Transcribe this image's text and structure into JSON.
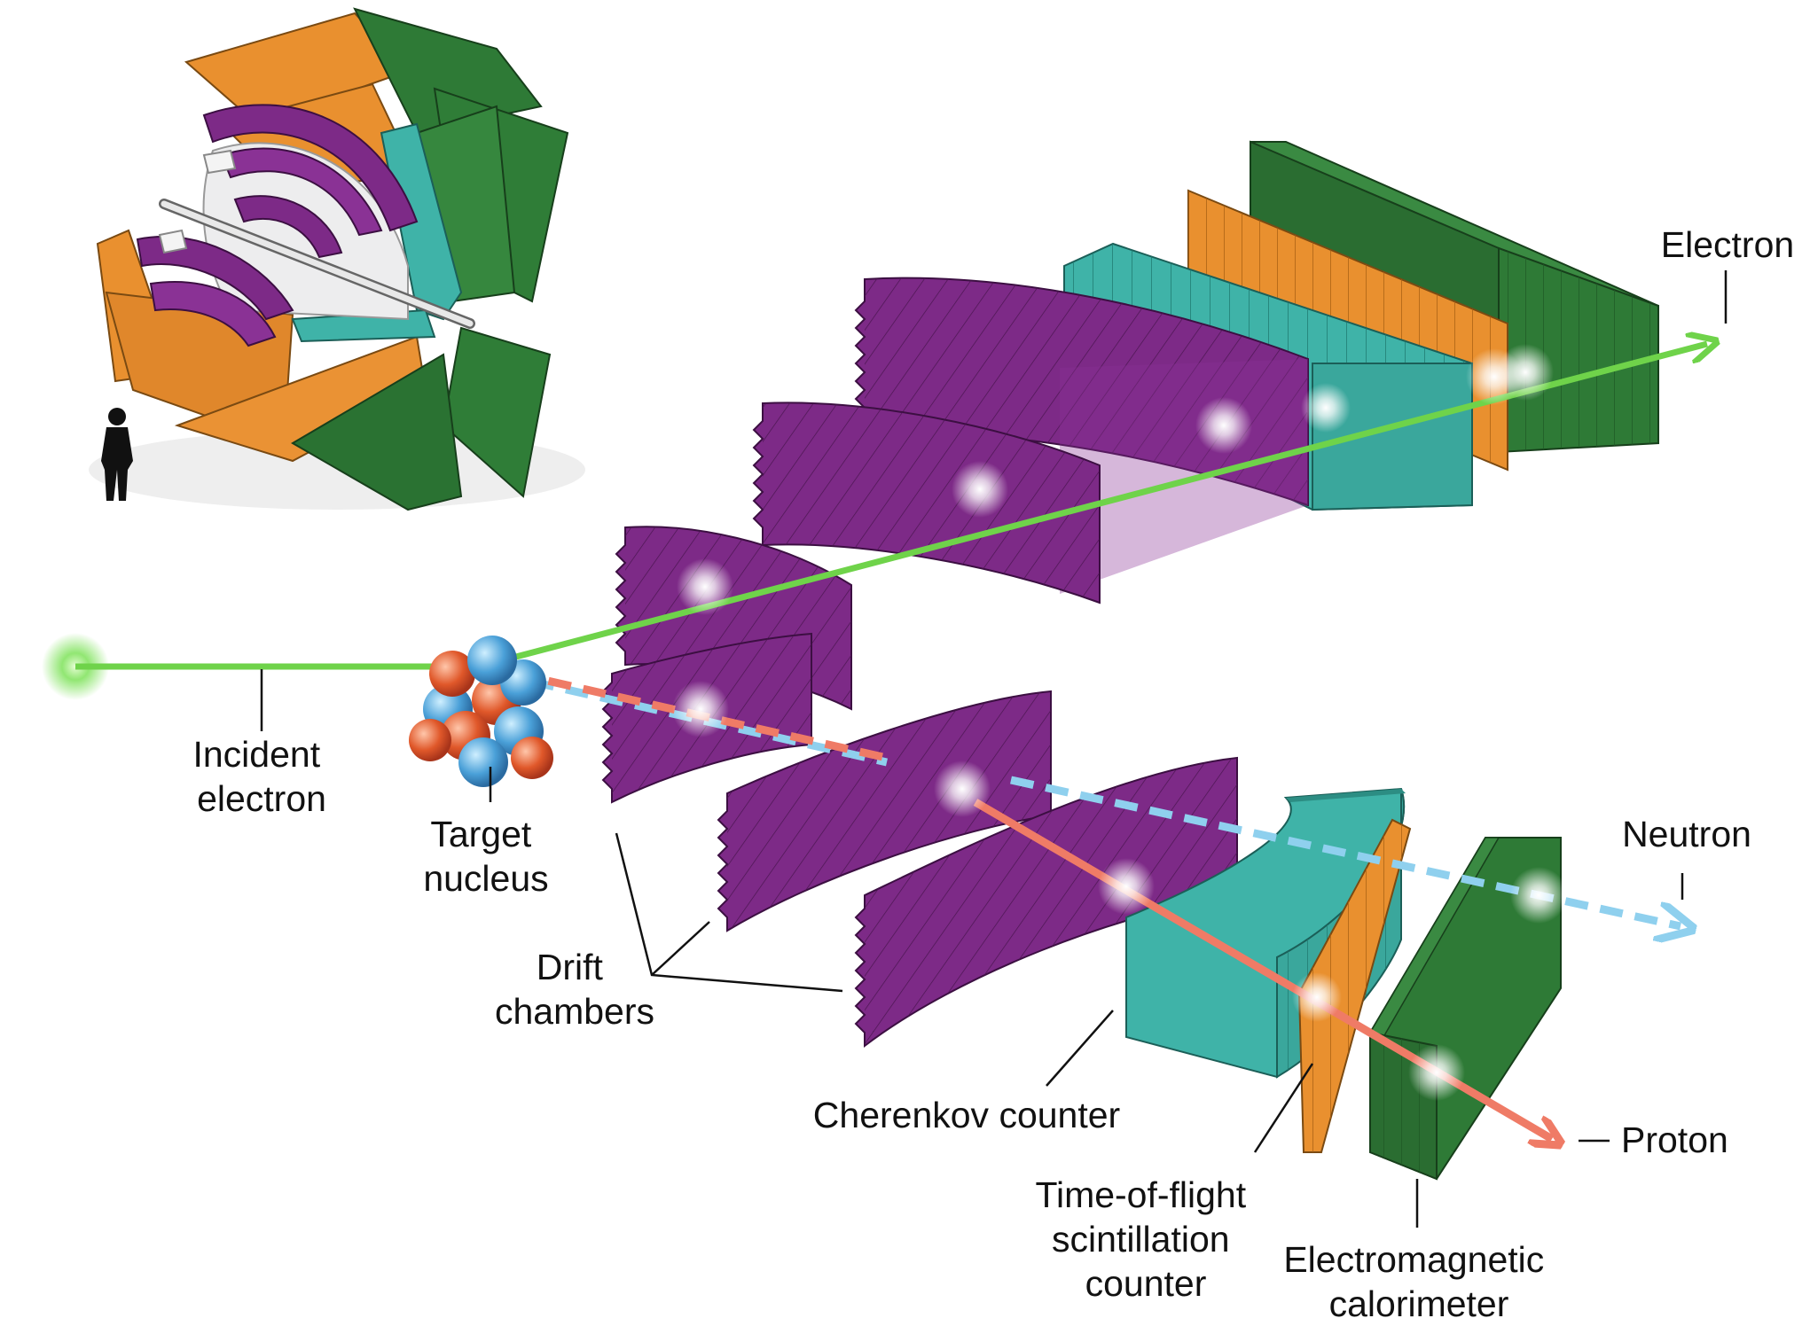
{
  "labels": {
    "incident_line1": "Incident",
    "incident_line2": "electron",
    "target_line1": "Target",
    "target_line2": "nucleus",
    "drift_line1": "Drift",
    "drift_line2": "chambers",
    "cherenkov": "Cherenkov counter",
    "tof_line1": "Time-of-flight",
    "tof_line2": "scintillation",
    "tof_line3": "counter",
    "emcal_line1": "Electromagnetic",
    "emcal_line2": "calorimeter",
    "electron": "Electron",
    "neutron": "Neutron",
    "proton": "Proton"
  },
  "colors": {
    "electron_track": "#6fd34a",
    "proton_track": "#ef7b66",
    "neutron_track": "#8fd0ee",
    "drift_chamber": "#7d2a87",
    "cherenkov": "#3fb3a8",
    "tof": "#e9902f",
    "calorimeter": "#2e7a36"
  },
  "icons": [
    "detector-overview-icon",
    "person-silhouette-icon",
    "nucleus-icon",
    "hit-flash-icon"
  ]
}
